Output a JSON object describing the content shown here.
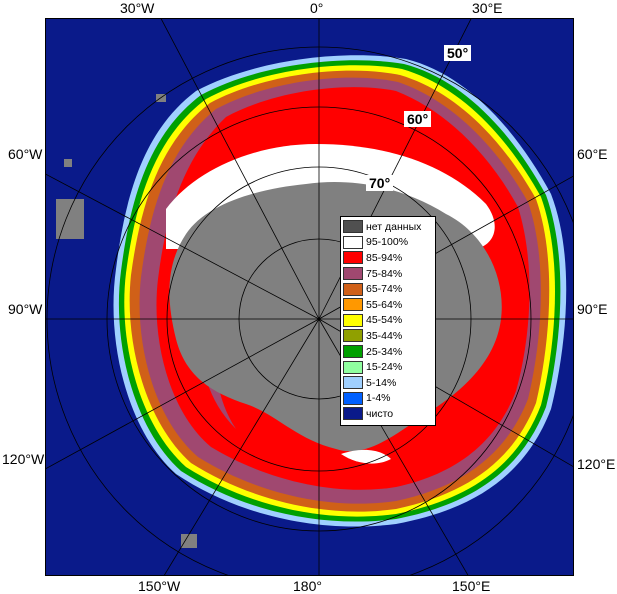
{
  "map": {
    "edge_labels": {
      "top": [
        "30°W",
        "0°",
        "30°E"
      ],
      "left": [
        "60°W",
        "90°W",
        "120°W"
      ],
      "right": [
        "60°E",
        "90°E",
        "120°E"
      ],
      "bottom": [
        "150°W",
        "180°",
        "150°E"
      ]
    },
    "latitude_labels": [
      "50°",
      "60°",
      "70°"
    ],
    "colors": {
      "ocean": "#0a1a8a",
      "land": "#808080",
      "grid": "#000000"
    }
  },
  "legend": {
    "items": [
      {
        "label": "нет данных",
        "color": "#505050"
      },
      {
        "label": "95-100%",
        "color": "#ffffff"
      },
      {
        "label": "85-94%",
        "color": "#ff0000"
      },
      {
        "label": "75-84%",
        "color": "#a04870"
      },
      {
        "label": "65-74%",
        "color": "#d06018"
      },
      {
        "label": "55-64%",
        "color": "#ff9800"
      },
      {
        "label": "45-54%",
        "color": "#ffff00"
      },
      {
        "label": "35-44%",
        "color": "#90a000"
      },
      {
        "label": "25-34%",
        "color": "#00a000"
      },
      {
        "label": "15-24%",
        "color": "#90ffa0"
      },
      {
        "label": "5-14%",
        "color": "#a0d0ff"
      },
      {
        "label": "1-4%",
        "color": "#0060ff"
      },
      {
        "label": "чисто",
        "color": "#0a1a8a"
      }
    ]
  }
}
